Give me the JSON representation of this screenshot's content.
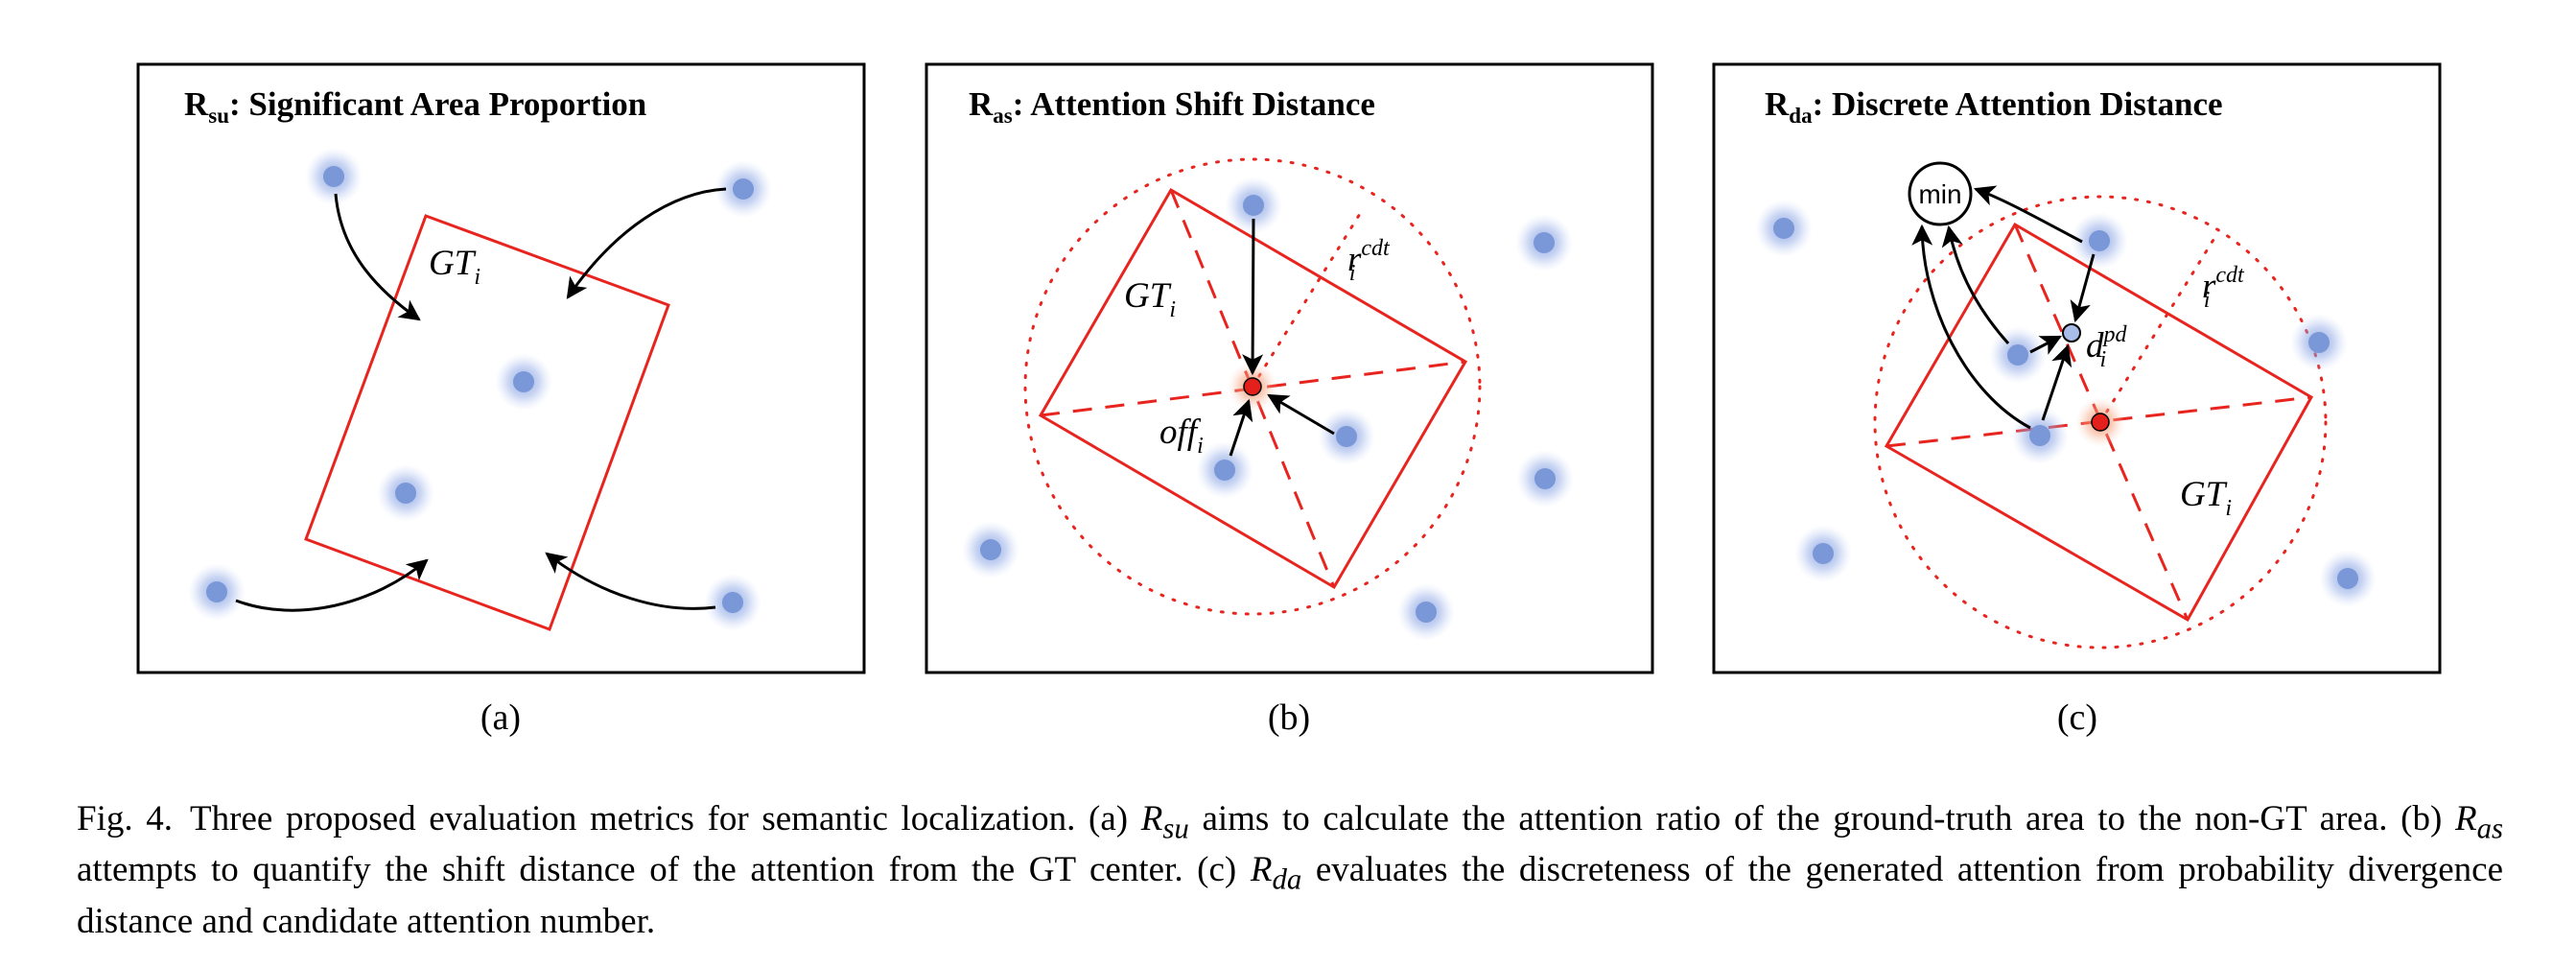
{
  "panels": {
    "a": {
      "title_main": "R",
      "title_sub": "su",
      "title_rest": ": Significant Area Proportion",
      "gt_main": "GT",
      "gt_sub": "i",
      "label": "(a)"
    },
    "b": {
      "title_main": "R",
      "title_sub": "as",
      "title_rest": ": Attention Shift Distance",
      "gt_main": "GT",
      "gt_sub": "i",
      "r_main": "r",
      "r_sup": "cdt",
      "r_sub": "i",
      "off_main": "off",
      "off_sub": "i",
      "label": "(b)"
    },
    "c": {
      "title_main": "R",
      "title_sub": "da",
      "title_rest": ": Discrete Attention Distance",
      "gt_main": "GT",
      "gt_sub": "i",
      "r_main": "r",
      "r_sup": "cdt",
      "r_sub": "i",
      "d_main": "d",
      "d_sup": "pd",
      "d_sub": "i",
      "min_label": "min",
      "label": "(c)"
    }
  },
  "caption": {
    "fig_label": "Fig. 4.",
    "s1": "Three proposed evaluation metrics for semantic localization. (a) ",
    "m1_main": "R",
    "m1_sub": "su",
    "s2": " aims to calculate the attention ratio of the ground-truth area to the non-GT area. (b) ",
    "m2_main": "R",
    "m2_sub": "as",
    "s3": " attempts to quantify the shift distance of the attention from the GT center. (c) ",
    "m3_main": "R",
    "m3_sub": "da",
    "s4": " evaluates the discreteness of the generated attention from probability divergence distance and candidate attention number."
  },
  "colors": {
    "gt_box": "#e8241f",
    "attention": "#6f8ed8",
    "center": "#e3201b",
    "frame": "#000000",
    "arrow": "#000000"
  }
}
